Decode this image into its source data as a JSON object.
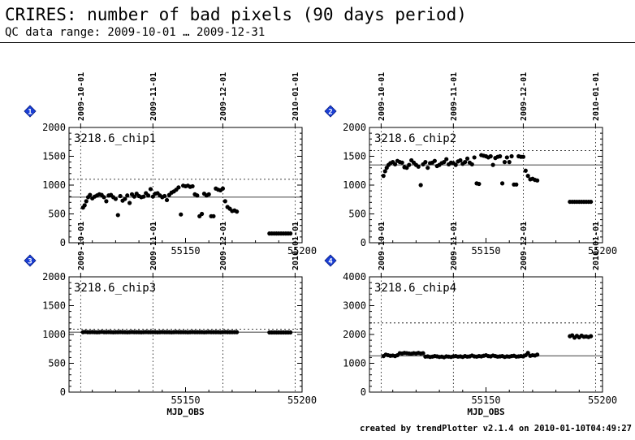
{
  "header": {
    "title": "CRIRES: number of bad pixels (90 days period)",
    "subtitle": "QC data range: 2009-10-01 … 2009-12-31"
  },
  "footer": "created by trendPlotter v2.1.4 on 2010-01-10T04:49:27",
  "colors": {
    "marker_fill": "#1a3fd6",
    "marker_glint": "#ffffff",
    "points": "#000000"
  },
  "chart_data": [
    {
      "type": "scatter",
      "index": "1",
      "label": "3218.6_chip1",
      "xlabel": "",
      "xlim": [
        55100,
        55200
      ],
      "ylim": [
        0,
        2000
      ],
      "xticks": [
        55150,
        55200
      ],
      "yticks": [
        0,
        500,
        1000,
        1500,
        2000
      ],
      "top_dates": [
        {
          "x": 55105,
          "label": "2009-10-01"
        },
        {
          "x": 55136,
          "label": "2009-11-01"
        },
        {
          "x": 55166,
          "label": "2009-12-01"
        },
        {
          "x": 55197,
          "label": "2010-01-01"
        }
      ],
      "median": 790,
      "threshold": 1100,
      "points": {
        "x": [
          55106,
          55106.7,
          55107.4,
          55108.2,
          55109,
          55110,
          55111,
          55112,
          55113,
          55114,
          55115,
          55116,
          55117,
          55118,
          55119,
          55120,
          55121,
          55122,
          55123,
          55124,
          55125,
          55126,
          55127,
          55128,
          55129,
          55130,
          55131,
          55132,
          55133,
          55134,
          55135,
          55136,
          55137,
          55138,
          55139,
          55140,
          55141,
          55142,
          55143,
          55144,
          55145,
          55146,
          55147,
          55148,
          55149,
          55150,
          55151,
          55152,
          55153,
          55154,
          55155,
          55156,
          55157,
          55158,
          55159,
          55160,
          55161,
          55162,
          55163,
          55164,
          55165,
          55166,
          55167,
          55168,
          55169,
          55170,
          55171,
          55172,
          55186,
          55187,
          55188,
          55189,
          55190,
          55191,
          55192,
          55193,
          55194,
          55195
        ],
        "y": [
          610,
          650,
          720,
          790,
          830,
          770,
          800,
          820,
          840,
          830,
          790,
          720,
          820,
          830,
          790,
          760,
          480,
          810,
          730,
          760,
          820,
          690,
          840,
          800,
          850,
          810,
          790,
          800,
          860,
          820,
          930,
          800,
          850,
          860,
          820,
          790,
          810,
          740,
          830,
          870,
          890,
          920,
          960,
          490,
          990,
          980,
          990,
          970,
          980,
          840,
          820,
          460,
          500,
          850,
          820,
          840,
          460,
          460,
          940,
          920,
          910,
          940,
          720,
          620,
          590,
          550,
          560,
          540,
          160,
          160,
          160,
          160,
          160,
          160,
          160,
          160,
          160,
          160
        ]
      }
    },
    {
      "type": "scatter",
      "index": "2",
      "label": "3218.6_chip2",
      "xlabel": "",
      "xlim": [
        55100,
        55200
      ],
      "ylim": [
        0,
        2000
      ],
      "xticks": [
        55150,
        55200
      ],
      "yticks": [
        0,
        500,
        1000,
        1500,
        2000
      ],
      "top_dates": [
        {
          "x": 55105,
          "label": "2009-10-01"
        },
        {
          "x": 55136,
          "label": "2009-11-01"
        },
        {
          "x": 55166,
          "label": "2009-12-01"
        },
        {
          "x": 55197,
          "label": "2010-01-01"
        }
      ],
      "median": 1350,
      "threshold": 1600,
      "points": {
        "x": [
          55106,
          55106.7,
          55107.4,
          55108.2,
          55109,
          55110,
          55111,
          55112,
          55113,
          55114,
          55115,
          55116,
          55117,
          55118,
          55119,
          55120,
          55121,
          55122,
          55123,
          55124,
          55125,
          55126,
          55127,
          55128,
          55129,
          55130,
          55131,
          55132,
          55133,
          55134,
          55135,
          55136,
          55137,
          55138,
          55139,
          55140,
          55141,
          55142,
          55143,
          55144,
          55145,
          55146,
          55147,
          55148,
          55149,
          55150,
          55151,
          55152,
          55153,
          55154,
          55155,
          55156,
          55157,
          55158,
          55159,
          55160,
          55161,
          55162,
          55163,
          55164,
          55165,
          55166,
          55167,
          55168,
          55169,
          55170,
          55171,
          55172,
          55186,
          55187,
          55188,
          55189,
          55190,
          55191,
          55192,
          55193,
          55194,
          55195
        ],
        "y": [
          1160,
          1240,
          1300,
          1350,
          1380,
          1400,
          1360,
          1420,
          1400,
          1390,
          1310,
          1300,
          1350,
          1430,
          1390,
          1350,
          1320,
          1000,
          1360,
          1400,
          1300,
          1380,
          1390,
          1420,
          1330,
          1350,
          1380,
          1400,
          1450,
          1360,
          1390,
          1380,
          1350,
          1410,
          1430,
          1370,
          1400,
          1460,
          1390,
          1360,
          1480,
          1030,
          1020,
          1520,
          1510,
          1500,
          1480,
          1500,
          1350,
          1470,
          1490,
          1500,
          1030,
          1400,
          1480,
          1400,
          1500,
          1010,
          1010,
          1500,
          1490,
          1490,
          1250,
          1160,
          1100,
          1110,
          1090,
          1080,
          710,
          710,
          710,
          710,
          710,
          710,
          710,
          710,
          710,
          710
        ]
      }
    },
    {
      "type": "scatter",
      "index": "3",
      "label": "3218.6_chip3",
      "xlabel": "MJD_OBS",
      "xlim": [
        55100,
        55200
      ],
      "ylim": [
        0,
        2000
      ],
      "xticks": [
        55150,
        55200
      ],
      "yticks": [
        0,
        500,
        1000,
        1500,
        2000
      ],
      "top_dates": [
        {
          "x": 55105,
          "label": "2009-10-01"
        },
        {
          "x": 55136,
          "label": "2009-11-01"
        },
        {
          "x": 55166,
          "label": "2009-12-01"
        },
        {
          "x": 55197,
          "label": "2010-01-01"
        }
      ],
      "median": 1040,
      "threshold": 1090,
      "points": {
        "x": [
          55106,
          55107,
          55108,
          55109,
          55110,
          55111,
          55112,
          55113,
          55114,
          55115,
          55116,
          55117,
          55118,
          55119,
          55120,
          55121,
          55122,
          55123,
          55124,
          55125,
          55126,
          55127,
          55128,
          55129,
          55130,
          55131,
          55132,
          55133,
          55134,
          55135,
          55136,
          55137,
          55138,
          55139,
          55140,
          55141,
          55142,
          55143,
          55144,
          55145,
          55146,
          55147,
          55148,
          55149,
          55150,
          55151,
          55152,
          55153,
          55154,
          55155,
          55156,
          55157,
          55158,
          55159,
          55160,
          55161,
          55162,
          55163,
          55164,
          55165,
          55166,
          55167,
          55168,
          55169,
          55170,
          55171,
          55172,
          55186,
          55187,
          55188,
          55189,
          55190,
          55191,
          55192,
          55193,
          55194,
          55195
        ],
        "y": [
          1040,
          1045,
          1040,
          1040,
          1042,
          1040,
          1038,
          1040,
          1045,
          1040,
          1040,
          1042,
          1040,
          1038,
          1040,
          1040,
          1042,
          1040,
          1040,
          1038,
          1040,
          1042,
          1040,
          1040,
          1040,
          1038,
          1040,
          1042,
          1040,
          1040,
          1040,
          1040,
          1038,
          1040,
          1042,
          1040,
          1040,
          1040,
          1038,
          1040,
          1042,
          1040,
          1040,
          1040,
          1040,
          1038,
          1040,
          1042,
          1040,
          1040,
          1040,
          1040,
          1038,
          1040,
          1042,
          1040,
          1040,
          1040,
          1040,
          1038,
          1040,
          1042,
          1040,
          1040,
          1040,
          1040,
          1040,
          1035,
          1035,
          1035,
          1035,
          1035,
          1035,
          1035,
          1035,
          1035,
          1035
        ]
      }
    },
    {
      "type": "scatter",
      "index": "4",
      "label": "3218.6_chip4",
      "xlabel": "MJD_OBS",
      "xlim": [
        55100,
        55200
      ],
      "ylim": [
        0,
        4000
      ],
      "xticks": [
        55150,
        55200
      ],
      "yticks": [
        0,
        1000,
        2000,
        3000,
        4000
      ],
      "top_dates": [
        {
          "x": 55105,
          "label": "2009-10-01"
        },
        {
          "x": 55136,
          "label": "2009-11-01"
        },
        {
          "x": 55166,
          "label": "2009-12-01"
        },
        {
          "x": 55197,
          "label": "2010-01-01"
        }
      ],
      "median": 1260,
      "threshold": 2400,
      "points": {
        "x": [
          55106,
          55107,
          55108,
          55109,
          55110,
          55111,
          55112,
          55113,
          55114,
          55115,
          55116,
          55117,
          55118,
          55119,
          55120,
          55121,
          55122,
          55123,
          55124,
          55125,
          55126,
          55127,
          55128,
          55129,
          55130,
          55131,
          55132,
          55133,
          55134,
          55135,
          55136,
          55137,
          55138,
          55139,
          55140,
          55141,
          55142,
          55143,
          55144,
          55145,
          55146,
          55147,
          55148,
          55149,
          55150,
          55151,
          55152,
          55153,
          55154,
          55155,
          55156,
          55157,
          55158,
          55159,
          55160,
          55161,
          55162,
          55163,
          55164,
          55165,
          55166,
          55167,
          55168,
          55169,
          55170,
          55171,
          55172,
          55186,
          55187,
          55188,
          55189,
          55190,
          55191,
          55192,
          55193,
          55194,
          55195
        ],
        "y": [
          1250,
          1300,
          1280,
          1260,
          1270,
          1250,
          1280,
          1350,
          1340,
          1360,
          1350,
          1340,
          1330,
          1350,
          1340,
          1360,
          1340,
          1350,
          1230,
          1240,
          1220,
          1230,
          1250,
          1240,
          1220,
          1230,
          1210,
          1240,
          1230,
          1220,
          1240,
          1250,
          1230,
          1240,
          1220,
          1250,
          1230,
          1240,
          1270,
          1240,
          1230,
          1250,
          1240,
          1260,
          1280,
          1250,
          1240,
          1270,
          1250,
          1230,
          1240,
          1250,
          1220,
          1240,
          1230,
          1250,
          1260,
          1230,
          1240,
          1250,
          1240,
          1280,
          1360,
          1260,
          1280,
          1270,
          1300,
          1940,
          1970,
          1890,
          1950,
          1900,
          1960,
          1920,
          1930,
          1910,
          1940
        ]
      }
    }
  ]
}
